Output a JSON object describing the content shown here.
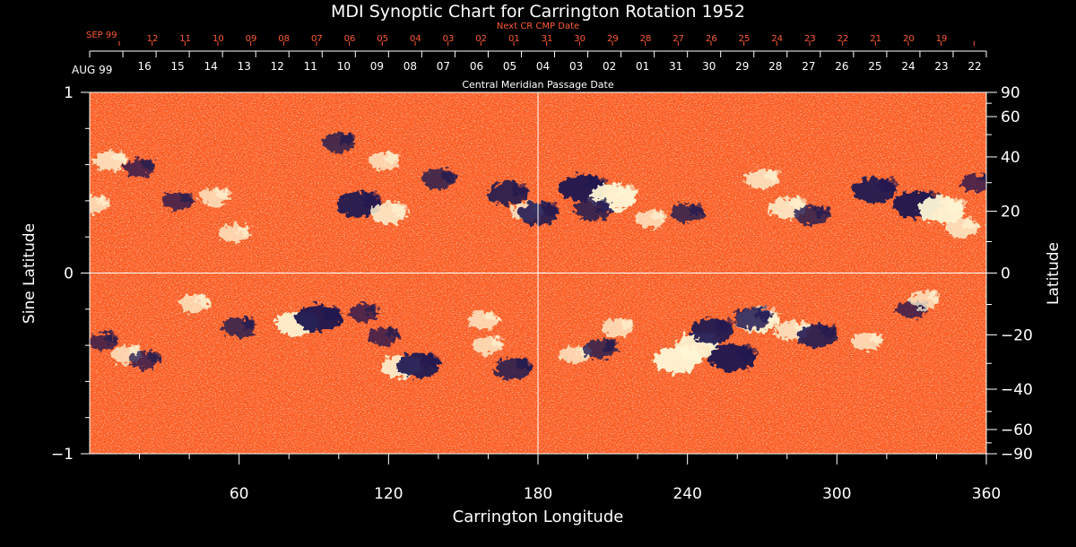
{
  "chart_data": {
    "type": "heatmap",
    "title": "MDI Synoptic Chart for Carrington Rotation 1952",
    "xlabel": "Carrington Longitude",
    "ylabel_left": "Sine Latitude",
    "ylabel_right": "Latitude",
    "top_axis_label": "Central Meridian Passage Date",
    "top_red_axis_label": "Next CR CMP Date",
    "xlim": [
      0,
      360
    ],
    "ylim_sine": [
      -1,
      1
    ],
    "x_ticks": [
      "60",
      "120",
      "180",
      "240",
      "300",
      "360"
    ],
    "y_ticks_left": [
      "1",
      "0",
      "−1"
    ],
    "y_ticks_right": [
      "90",
      "60",
      "40",
      "20",
      "0",
      "−20",
      "−40",
      "−60",
      "−90"
    ],
    "cmp_month_label": "AUG 99",
    "cmp_dates": [
      "16",
      "15",
      "14",
      "13",
      "12",
      "11",
      "10",
      "09",
      "08",
      "07",
      "06",
      "05",
      "04",
      "03",
      "02",
      "01",
      "31",
      "30",
      "29",
      "28",
      "27",
      "26",
      "25",
      "24",
      "23",
      "22"
    ],
    "next_cr_month_label": "SEP 99",
    "next_cr_dates": [
      "12",
      "11",
      "10",
      "09",
      "08",
      "07",
      "06",
      "05",
      "04",
      "03",
      "02",
      "01",
      "31",
      "30",
      "29",
      "28",
      "27",
      "26",
      "25",
      "24",
      "23",
      "22",
      "21",
      "20",
      "19"
    ],
    "reference_lines": {
      "longitude": 180,
      "sine_latitude": 0
    },
    "colors": {
      "background_field": "#ff5a1e",
      "negative_polarity": "#1a1550",
      "positive_polarity": "#fff7d6",
      "red_text": "#ff5a36",
      "axis": "#ffffff"
    },
    "magnetic_regions": [
      {
        "lon": 8,
        "lat": 0.62,
        "polarity": "positive",
        "strength": 0.6
      },
      {
        "lon": 20,
        "lat": 0.58,
        "polarity": "negative",
        "strength": 0.5
      },
      {
        "lon": 2,
        "lat": 0.38,
        "polarity": "positive",
        "strength": 0.5
      },
      {
        "lon": 35,
        "lat": 0.4,
        "polarity": "negative",
        "strength": 0.5
      },
      {
        "lon": 50,
        "lat": 0.42,
        "polarity": "positive",
        "strength": 0.5
      },
      {
        "lon": 58,
        "lat": 0.22,
        "polarity": "positive",
        "strength": 0.5
      },
      {
        "lon": 100,
        "lat": 0.72,
        "polarity": "negative",
        "strength": 0.6
      },
      {
        "lon": 118,
        "lat": 0.62,
        "polarity": "positive",
        "strength": 0.5
      },
      {
        "lon": 108,
        "lat": 0.38,
        "polarity": "negative",
        "strength": 0.9
      },
      {
        "lon": 120,
        "lat": 0.33,
        "polarity": "positive",
        "strength": 0.7
      },
      {
        "lon": 140,
        "lat": 0.52,
        "polarity": "negative",
        "strength": 0.6
      },
      {
        "lon": 168,
        "lat": 0.44,
        "polarity": "negative",
        "strength": 0.8
      },
      {
        "lon": 176,
        "lat": 0.34,
        "polarity": "positive",
        "strength": 0.6
      },
      {
        "lon": 180,
        "lat": 0.33,
        "polarity": "negative",
        "strength": 0.8
      },
      {
        "lon": 198,
        "lat": 0.47,
        "polarity": "negative",
        "strength": 1.0
      },
      {
        "lon": 210,
        "lat": 0.42,
        "polarity": "positive",
        "strength": 1.0
      },
      {
        "lon": 202,
        "lat": 0.35,
        "polarity": "negative",
        "strength": 0.7
      },
      {
        "lon": 225,
        "lat": 0.3,
        "polarity": "positive",
        "strength": 0.5
      },
      {
        "lon": 240,
        "lat": 0.33,
        "polarity": "negative",
        "strength": 0.6
      },
      {
        "lon": 270,
        "lat": 0.52,
        "polarity": "positive",
        "strength": 0.6
      },
      {
        "lon": 280,
        "lat": 0.36,
        "polarity": "positive",
        "strength": 0.7
      },
      {
        "lon": 290,
        "lat": 0.32,
        "polarity": "negative",
        "strength": 0.6
      },
      {
        "lon": 315,
        "lat": 0.46,
        "polarity": "negative",
        "strength": 0.9
      },
      {
        "lon": 332,
        "lat": 0.38,
        "polarity": "negative",
        "strength": 1.0
      },
      {
        "lon": 342,
        "lat": 0.35,
        "polarity": "positive",
        "strength": 1.0
      },
      {
        "lon": 350,
        "lat": 0.25,
        "polarity": "positive",
        "strength": 0.6
      },
      {
        "lon": 356,
        "lat": 0.5,
        "polarity": "negative",
        "strength": 0.5
      },
      {
        "lon": 5,
        "lat": -0.38,
        "polarity": "negative",
        "strength": 0.5
      },
      {
        "lon": 15,
        "lat": -0.45,
        "polarity": "positive",
        "strength": 0.5
      },
      {
        "lon": 22,
        "lat": -0.48,
        "polarity": "negative",
        "strength": 0.5
      },
      {
        "lon": 42,
        "lat": -0.17,
        "polarity": "positive",
        "strength": 0.5
      },
      {
        "lon": 60,
        "lat": -0.3,
        "polarity": "negative",
        "strength": 0.6
      },
      {
        "lon": 83,
        "lat": -0.28,
        "polarity": "positive",
        "strength": 0.9
      },
      {
        "lon": 92,
        "lat": -0.25,
        "polarity": "negative",
        "strength": 1.0
      },
      {
        "lon": 110,
        "lat": -0.22,
        "polarity": "negative",
        "strength": 0.5
      },
      {
        "lon": 118,
        "lat": -0.35,
        "polarity": "negative",
        "strength": 0.5
      },
      {
        "lon": 125,
        "lat": -0.52,
        "polarity": "positive",
        "strength": 0.8
      },
      {
        "lon": 132,
        "lat": -0.51,
        "polarity": "negative",
        "strength": 0.9
      },
      {
        "lon": 158,
        "lat": -0.26,
        "polarity": "positive",
        "strength": 0.5
      },
      {
        "lon": 160,
        "lat": -0.4,
        "polarity": "positive",
        "strength": 0.5
      },
      {
        "lon": 170,
        "lat": -0.53,
        "polarity": "negative",
        "strength": 0.7
      },
      {
        "lon": 195,
        "lat": -0.45,
        "polarity": "positive",
        "strength": 0.5
      },
      {
        "lon": 205,
        "lat": -0.42,
        "polarity": "negative",
        "strength": 0.6
      },
      {
        "lon": 212,
        "lat": -0.3,
        "polarity": "positive",
        "strength": 0.5
      },
      {
        "lon": 236,
        "lat": -0.48,
        "polarity": "positive",
        "strength": 1.0
      },
      {
        "lon": 244,
        "lat": -0.4,
        "polarity": "positive",
        "strength": 0.9
      },
      {
        "lon": 250,
        "lat": -0.32,
        "polarity": "negative",
        "strength": 0.9
      },
      {
        "lon": 258,
        "lat": -0.47,
        "polarity": "negative",
        "strength": 1.0
      },
      {
        "lon": 268,
        "lat": -0.26,
        "polarity": "positive",
        "strength": 0.9
      },
      {
        "lon": 266,
        "lat": -0.25,
        "polarity": "negative",
        "strength": 0.7
      },
      {
        "lon": 282,
        "lat": -0.32,
        "polarity": "positive",
        "strength": 0.6
      },
      {
        "lon": 292,
        "lat": -0.35,
        "polarity": "negative",
        "strength": 0.8
      },
      {
        "lon": 312,
        "lat": -0.38,
        "polarity": "positive",
        "strength": 0.5
      },
      {
        "lon": 330,
        "lat": -0.2,
        "polarity": "negative",
        "strength": 0.5
      },
      {
        "lon": 335,
        "lat": -0.15,
        "polarity": "positive",
        "strength": 0.5
      }
    ]
  }
}
